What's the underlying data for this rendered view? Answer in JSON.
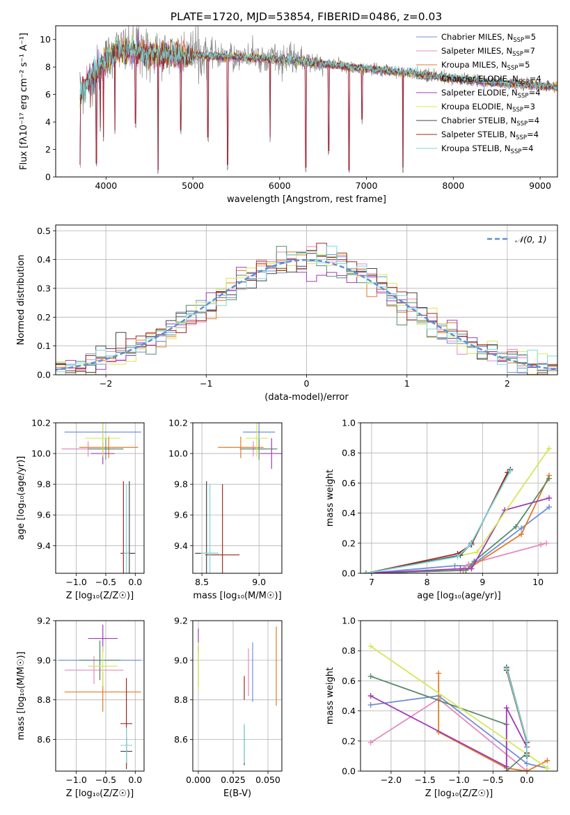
{
  "figure": {
    "title": "PLATE=1720, MJD=53854, FIBERID=0486, z=0.03"
  },
  "colors": {
    "c1": "#6f8fd9",
    "c2": "#e48ac0",
    "c3": "#e07b24",
    "c4": "#5a8c6c",
    "c5": "#a03ab7",
    "c6": "#d7e757",
    "c7": "#444444",
    "c8": "#9b2a1e",
    "c9": "#79d9dd",
    "data": "#888888",
    "normal": "#5b8fd6"
  },
  "chart_data": [
    {
      "id": "spectrum",
      "type": "line",
      "xlabel": "wavelength [Angstrom, rest frame]",
      "ylabel": "Flux [fλ10⁻¹⁷ erg cm⁻² s⁻¹ A⁻¹]",
      "xlim": [
        3420,
        9200
      ],
      "ylim": [
        0,
        11
      ],
      "xticks": [
        4000,
        5000,
        6000,
        7000,
        8000,
        9000
      ],
      "yticks": [
        0,
        2,
        4,
        6,
        8,
        10
      ],
      "grid": false,
      "legend_position": "upper right",
      "legend": [
        {
          "label": "Chabrier MILES, N",
          "sub": "SSP",
          "tail": "=5",
          "color": "#6f8fd9"
        },
        {
          "label": "Salpeter MILES, N",
          "sub": "SSP",
          "tail": "=7",
          "color": "#e48ac0"
        },
        {
          "label": "Kroupa MILES, N",
          "sub": "SSP",
          "tail": "=5",
          "color": "#e07b24"
        },
        {
          "label": "Chabrier ELODIE, N",
          "sub": "SSP",
          "tail": "=4",
          "color": "#5a8c6c"
        },
        {
          "label": "Salpeter ELODIE, N",
          "sub": "SSP",
          "tail": "=4",
          "color": "#a03ab7"
        },
        {
          "label": "Kroupa ELODIE, N",
          "sub": "SSP",
          "tail": "=3",
          "color": "#d7e757"
        },
        {
          "label": "Chabrier STELIB, N",
          "sub": "SSP",
          "tail": "=4",
          "color": "#444444"
        },
        {
          "label": "Salpeter STELIB, N",
          "sub": "SSP",
          "tail": "=4",
          "color": "#9b2a1e"
        },
        {
          "label": "Kroupa STELIB, N",
          "sub": "SSP",
          "tail": "=4",
          "color": "#79d9dd"
        }
      ],
      "continuum": [
        [
          3700,
          6.0
        ],
        [
          3850,
          7.5
        ],
        [
          4000,
          8.6
        ],
        [
          4150,
          9.3
        ],
        [
          4300,
          9.2
        ],
        [
          4500,
          9.0
        ],
        [
          5000,
          8.9
        ],
        [
          5500,
          8.8
        ],
        [
          6000,
          8.6
        ],
        [
          6500,
          8.3
        ],
        [
          7000,
          7.9
        ],
        [
          7500,
          7.6
        ],
        [
          8000,
          7.2
        ],
        [
          8500,
          6.9
        ],
        [
          9000,
          6.7
        ],
        [
          9200,
          6.6
        ]
      ],
      "absorption_dips": [
        [
          3700,
          0.5
        ],
        [
          3890,
          0.6
        ],
        [
          3934,
          3.2
        ],
        [
          3970,
          2.5
        ],
        [
          4102,
          3.0
        ],
        [
          4340,
          3.5
        ],
        [
          4600,
          0.1
        ],
        [
          4861,
          3.0
        ],
        [
          5175,
          2.5
        ],
        [
          5400,
          0.5
        ],
        [
          5890,
          2.5
        ],
        [
          6300,
          0.3
        ],
        [
          6563,
          1.5
        ],
        [
          6800,
          0.1
        ],
        [
          6950,
          3.8
        ],
        [
          7420,
          0.3
        ]
      ]
    },
    {
      "id": "residuals",
      "type": "histogram",
      "xlabel": "(data-model)/error",
      "ylabel": "Normed distribution",
      "xlim": [
        -2.5,
        2.5
      ],
      "ylim": [
        0,
        0.52
      ],
      "xticks": [
        -2,
        -1,
        0,
        1,
        2
      ],
      "yticks": [
        0.0,
        0.1,
        0.2,
        0.3,
        0.4,
        0.5
      ],
      "grid": true,
      "legend_position": "upper right",
      "legend": [
        {
          "label": "𝒩(0, 1)",
          "color": "#5b8fd6",
          "style": "dashed"
        }
      ],
      "bin_width": 0.1
    },
    {
      "id": "age_vs_Z",
      "type": "scatter",
      "xlabel": "Z [log₁₀(Z/Z☉)]",
      "ylabel": "age  [log₁₀(age/yr)]",
      "xlim": [
        -1.35,
        0.15
      ],
      "ylim": [
        9.22,
        10.2
      ],
      "xticks": [
        -1.0,
        -0.5,
        0.0
      ],
      "yticks": [
        9.4,
        9.6,
        9.8,
        10.0,
        10.2
      ],
      "grid": true,
      "points": [
        {
          "x": -0.55,
          "y": 10.14,
          "xerr": 0.65,
          "yerr": 0.1,
          "color": "#6f8fd9"
        },
        {
          "x": -0.8,
          "y": 10.03,
          "xerr": 0.45,
          "yerr": 0.05,
          "color": "#e48ac0"
        },
        {
          "x": -0.45,
          "y": 10.04,
          "xerr": 0.5,
          "yerr": 0.07,
          "color": "#e07b24"
        },
        {
          "x": -0.5,
          "y": 10.03,
          "xerr": 0.3,
          "yerr": 0.07,
          "color": "#5a8c6c"
        },
        {
          "x": -0.55,
          "y": 10.0,
          "xerr": 0.2,
          "yerr": 0.07,
          "color": "#a03ab7"
        },
        {
          "x": -0.55,
          "y": 10.1,
          "xerr": 0.3,
          "yerr": 0.12,
          "color": "#d7e757"
        },
        {
          "x": -0.1,
          "y": 9.35,
          "xerr": 0.1,
          "yerr": 0.47,
          "color": "#444444"
        },
        {
          "x": -0.2,
          "y": 9.35,
          "xerr": 0.05,
          "yerr": 0.47,
          "color": "#9b2a1e"
        },
        {
          "x": -0.15,
          "y": 9.35,
          "xerr": 0.05,
          "yerr": 0.45,
          "color": "#79d9dd"
        }
      ]
    },
    {
      "id": "age_vs_mass",
      "type": "scatter",
      "xlabel": "mass [log₁₀(M/M☉)]",
      "ylabel": "",
      "xlim": [
        8.42,
        9.2
      ],
      "ylim": [
        9.22,
        10.2
      ],
      "xticks": [
        8.5,
        9.0
      ],
      "yticks": [
        9.4,
        9.6,
        9.8,
        10.0,
        10.2
      ],
      "grid": true,
      "points": [
        {
          "x": 9.0,
          "y": 10.14,
          "xerr": 0.14,
          "yerr": 0.1,
          "color": "#6f8fd9"
        },
        {
          "x": 8.95,
          "y": 10.03,
          "xerr": 0.12,
          "yerr": 0.05,
          "color": "#e48ac0"
        },
        {
          "x": 8.84,
          "y": 10.04,
          "xerr": 0.2,
          "yerr": 0.07,
          "color": "#e07b24"
        },
        {
          "x": 9.0,
          "y": 10.03,
          "xerr": 0.16,
          "yerr": 0.07,
          "color": "#5a8c6c"
        },
        {
          "x": 9.11,
          "y": 10.0,
          "xerr": 0.1,
          "yerr": 0.1,
          "color": "#a03ab7"
        },
        {
          "x": 8.98,
          "y": 10.1,
          "xerr": 0.1,
          "yerr": 0.12,
          "color": "#d7e757"
        },
        {
          "x": 8.54,
          "y": 9.35,
          "xerr": 0.1,
          "yerr": 0.47,
          "color": "#444444"
        },
        {
          "x": 8.68,
          "y": 9.34,
          "xerr": 0.15,
          "yerr": 0.46,
          "color": "#9b2a1e"
        },
        {
          "x": 8.57,
          "y": 9.35,
          "xerr": 0.08,
          "yerr": 0.45,
          "color": "#79d9dd"
        }
      ]
    },
    {
      "id": "weight_vs_age",
      "type": "line",
      "xlabel": "age  [log₁₀(age/yr)]",
      "ylabel": "mass weight",
      "xlim": [
        6.8,
        10.35
      ],
      "ylim": [
        0,
        1.0
      ],
      "xticks": [
        7,
        8,
        9,
        10
      ],
      "yticks": [
        0.0,
        0.2,
        0.4,
        0.6,
        0.8,
        1.0
      ],
      "grid": true,
      "series": [
        {
          "color": "#6f8fd9",
          "x": [
            6.9,
            8.5,
            8.8,
            9.7,
            10.2
          ],
          "y": [
            0.0,
            0.05,
            0.05,
            0.3,
            0.44
          ]
        },
        {
          "color": "#e48ac0",
          "x": [
            6.9,
            8.6,
            8.75,
            10.05,
            10.15
          ],
          "y": [
            0.0,
            0.02,
            0.06,
            0.19,
            0.2
          ]
        },
        {
          "color": "#e07b24",
          "x": [
            6.9,
            8.65,
            8.7,
            9.7,
            10.2
          ],
          "y": [
            0.0,
            0.02,
            0.02,
            0.26,
            0.65
          ]
        },
        {
          "color": "#5a8c6c",
          "x": [
            6.9,
            8.7,
            8.85,
            9.6,
            10.2
          ],
          "y": [
            0.0,
            0.02,
            0.08,
            0.31,
            0.63
          ]
        },
        {
          "color": "#a03ab7",
          "x": [
            6.9,
            8.6,
            8.8,
            9.4,
            10.2
          ],
          "y": [
            0.0,
            0.03,
            0.03,
            0.42,
            0.5
          ]
        },
        {
          "color": "#d7e757",
          "x": [
            6.9,
            8.9,
            10.2
          ],
          "y": [
            0.0,
            0.14,
            0.83
          ]
        },
        {
          "color": "#444444",
          "x": [
            6.9,
            8.6,
            8.8,
            9.5
          ],
          "y": [
            0.0,
            0.12,
            0.2,
            0.69
          ]
        },
        {
          "color": "#9b2a1e",
          "x": [
            6.9,
            8.55,
            8.8,
            9.45
          ],
          "y": [
            0.0,
            0.13,
            0.19,
            0.67
          ]
        },
        {
          "color": "#79d9dd",
          "x": [
            6.9,
            8.55,
            8.78,
            9.5
          ],
          "y": [
            0.0,
            0.11,
            0.19,
            0.68
          ]
        }
      ]
    },
    {
      "id": "mass_vs_Z",
      "type": "scatter",
      "xlabel": "Z [log₁₀(Z/Z☉)]",
      "ylabel": "mass [log₁₀(M/M☉)]",
      "xlim": [
        -1.35,
        0.15
      ],
      "ylim": [
        8.44,
        9.2
      ],
      "xticks": [
        -1.0,
        -0.5,
        0.0
      ],
      "yticks": [
        8.6,
        8.8,
        9.0,
        9.2
      ],
      "grid": true,
      "points": [
        {
          "x": -0.6,
          "y": 9.0,
          "xerr": 0.7,
          "yerr": 0.1,
          "color": "#6f8fd9"
        },
        {
          "x": -0.7,
          "y": 8.95,
          "xerr": 0.5,
          "yerr": 0.07,
          "color": "#e48ac0"
        },
        {
          "x": -0.55,
          "y": 8.84,
          "xerr": 0.65,
          "yerr": 0.1,
          "color": "#e07b24"
        },
        {
          "x": -0.6,
          "y": 9.0,
          "xerr": 0.35,
          "yerr": 0.1,
          "color": "#5a8c6c"
        },
        {
          "x": -0.55,
          "y": 9.11,
          "xerr": 0.25,
          "yerr": 0.07,
          "color": "#a03ab7"
        },
        {
          "x": -0.55,
          "y": 8.97,
          "xerr": 0.25,
          "yerr": 0.1,
          "color": "#d7e757"
        },
        {
          "x": -0.15,
          "y": 8.54,
          "xerr": 0.1,
          "yerr": 0.07,
          "color": "#444444"
        },
        {
          "x": -0.15,
          "y": 8.68,
          "xerr": 0.1,
          "yerr": 0.23,
          "color": "#9b2a1e"
        },
        {
          "x": -0.15,
          "y": 8.57,
          "xerr": 0.1,
          "yerr": 0.09,
          "color": "#79d9dd"
        }
      ]
    },
    {
      "id": "mass_vs_EBV",
      "type": "scatter",
      "xlabel": "E(B-V)",
      "ylabel": "",
      "xlim": [
        -0.004,
        0.06
      ],
      "ylim": [
        8.44,
        9.2
      ],
      "xticks": [
        0.0,
        0.025,
        0.05
      ],
      "xtick_labels": [
        "0.000",
        "0.025",
        "0.050"
      ],
      "yticks": [
        8.6,
        8.8,
        9.0,
        9.2
      ],
      "grid": true,
      "points": [
        {
          "x": 0.039,
          "y": 8.94,
          "yerr": 0.15,
          "color": "#6f8fd9"
        },
        {
          "x": 0.036,
          "y": 8.94,
          "yerr": 0.12,
          "color": "#e48ac0"
        },
        {
          "x": 0.056,
          "y": 8.97,
          "yerr": 0.2,
          "color": "#e07b24"
        },
        {
          "x": 0.0,
          "y": 8.97,
          "yerr": 0.1,
          "color": "#5a8c6c"
        },
        {
          "x": 0.0,
          "y": 9.1,
          "yerr": 0.06,
          "color": "#a03ab7"
        },
        {
          "x": 0.0,
          "y": 8.97,
          "yerr": 0.12,
          "color": "#d7e757"
        },
        {
          "x": 0.033,
          "y": 8.57,
          "yerr": 0.1,
          "color": "#444444"
        },
        {
          "x": 0.033,
          "y": 8.86,
          "yerr": 0.06,
          "color": "#9b2a1e"
        },
        {
          "x": 0.033,
          "y": 8.58,
          "yerr": 0.1,
          "color": "#79d9dd"
        }
      ]
    },
    {
      "id": "weight_vs_Z",
      "type": "line",
      "xlabel": "Z [log₁₀(Z/Z☉)]",
      "ylabel": "mass weight",
      "xlim": [
        -2.45,
        0.45
      ],
      "ylim": [
        0,
        1.0
      ],
      "xticks": [
        -2.0,
        -1.5,
        -1.0,
        -0.5,
        0.0
      ],
      "yticks": [
        0.0,
        0.2,
        0.4,
        0.6,
        0.8,
        1.0
      ],
      "grid": true,
      "series": [
        {
          "color": "#6f8fd9",
          "x": [
            -2.3,
            -1.3,
            0.0,
            0.3
          ],
          "y": [
            0.44,
            0.5,
            0.05,
            0.02
          ]
        },
        {
          "color": "#e48ac0",
          "x": [
            -2.3,
            -1.3,
            0.0
          ],
          "y": [
            0.19,
            0.48,
            0.0
          ]
        },
        {
          "color": "#e07b24",
          "x": [
            -1.3,
            -1.3,
            -0.3,
            0.0,
            0.3
          ],
          "y": [
            0.65,
            0.26,
            0.02,
            0.0,
            0.07
          ]
        },
        {
          "color": "#5a8c6c",
          "x": [
            -2.3,
            -0.3,
            -0.3,
            0.0
          ],
          "y": [
            0.63,
            0.31,
            0.0,
            0.12
          ]
        },
        {
          "color": "#a03ab7",
          "x": [
            -2.3,
            -0.3,
            -0.3,
            0.0
          ],
          "y": [
            0.5,
            0.03,
            0.42,
            0.16
          ]
        },
        {
          "color": "#d7e757",
          "x": [
            -2.3,
            0.3
          ],
          "y": [
            0.83,
            0.02
          ]
        },
        {
          "color": "#444444",
          "x": [
            -0.3,
            0.0,
            0.0
          ],
          "y": [
            0.69,
            0.2,
            0.1
          ]
        },
        {
          "color": "#9b2a1e",
          "x": [
            -0.3,
            0.0,
            0.0
          ],
          "y": [
            0.67,
            0.19,
            0.12
          ]
        },
        {
          "color": "#79d9dd",
          "x": [
            -0.3,
            0.0,
            0.0
          ],
          "y": [
            0.68,
            0.2,
            0.11
          ]
        }
      ]
    }
  ]
}
